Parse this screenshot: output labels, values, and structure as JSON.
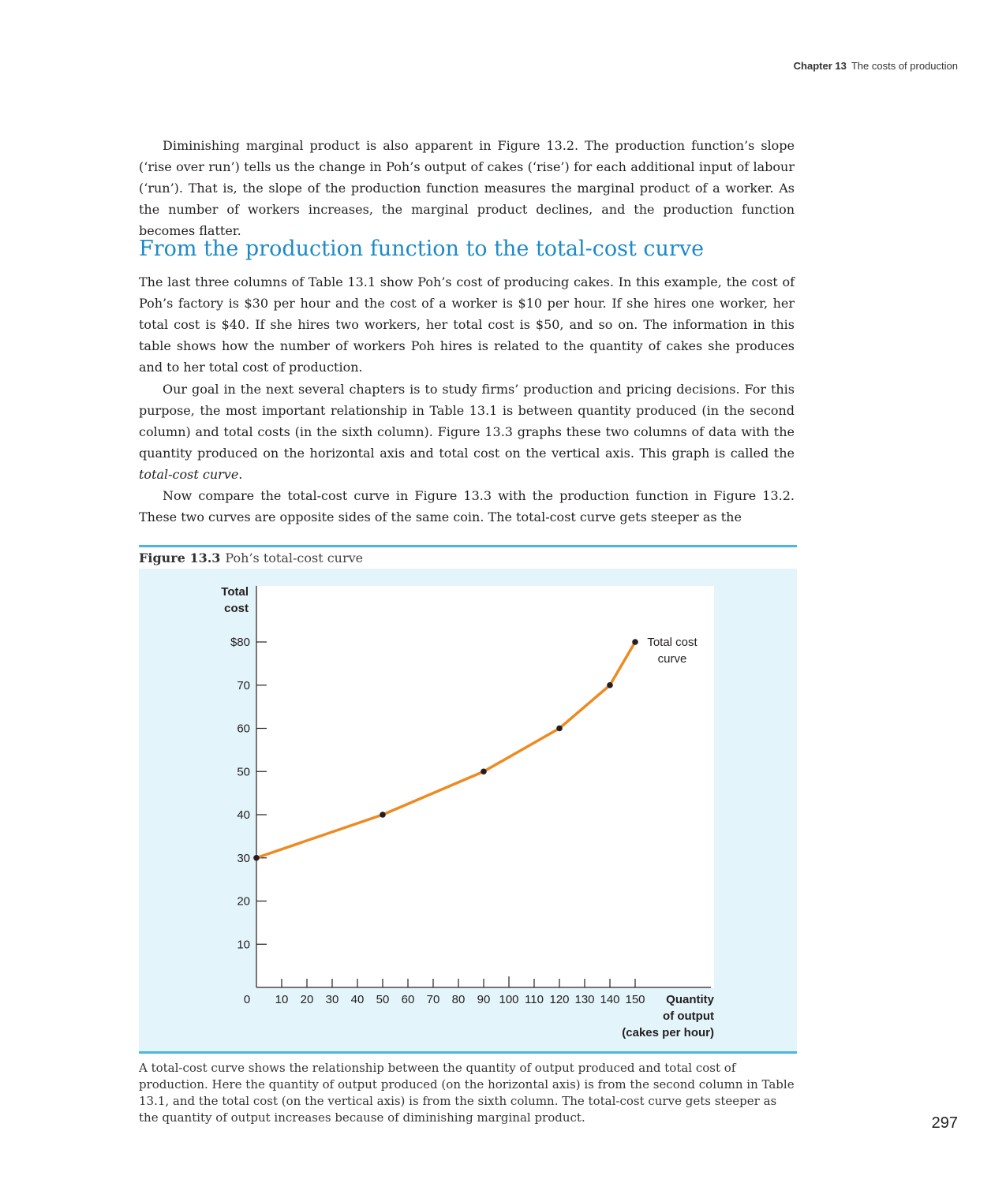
{
  "running_head": {
    "chapter": "Chapter 13",
    "title": "The costs of production"
  },
  "paragraphs": {
    "p1": "Diminishing marginal product is also apparent in Figure 13.2. The production function’s slope (‘rise over run’) tells us the change in Poh’s output of cakes (‘rise’) for each additional input of labour (‘run’). That is, the slope of the production function measures the marginal product of a worker. As the number of workers increases, the marginal product declines, and the production function becomes flatter.",
    "p2": "The last three columns of Table 13.1 show Poh’s cost of producing cakes. In this example, the cost of Poh’s factory is $30 per hour and the cost of a worker is $10 per hour. If she hires one worker, her total cost is $40. If she hires two workers, her total cost is $50, and so on. The information in this table shows how the number of workers Poh hires is related to the quantity of cakes she produces and to her total cost of production.",
    "p3_main": "Our goal in the next several chapters is to study firms’ production and pricing decisions. For this purpose, the most important relationship in Table 13.1 is between quantity produced (in the second column) and total costs (in the sixth column). Figure 13.3 graphs these two columns of data with the quantity produced on the horizontal axis and total cost on the vertical axis. This graph is called the ",
    "p3_term": "total-cost curve",
    "p3_end": ".",
    "p4": "Now compare the total-cost curve in Figure 13.3 with the production function in Figure 13.2. These two curves are opposite sides of the same coin. The total-cost curve gets steeper as the"
  },
  "section_heading": "From the production function to the total-cost curve",
  "figure": {
    "number": "Figure 13.3",
    "title": "Poh’s total-cost curve",
    "note": "A total-cost curve shows the relationship between the quantity of output produced and total cost of production. Here the quantity of output produced (on the horizontal axis) is from the second column in Table 13.1, and the total cost (on the vertical axis) is from the sixth column. The total-cost curve gets steeper as the quantity of output increases because of diminishing marginal product."
  },
  "chart_data": {
    "type": "line",
    "ylabel": [
      "Total",
      "cost"
    ],
    "xlabel": [
      "Quantity",
      "of output",
      "(cakes per hour)"
    ],
    "origin_label": "0",
    "x_ticks": [
      10,
      20,
      30,
      40,
      50,
      60,
      70,
      80,
      90,
      100,
      110,
      120,
      130,
      140,
      150
    ],
    "y_ticks": [
      10,
      20,
      30,
      40,
      50,
      60,
      70,
      80
    ],
    "y_tick_labels": [
      "10",
      "20",
      "30",
      "40",
      "50",
      "60",
      "70",
      "$80"
    ],
    "xlim": [
      0,
      180
    ],
    "ylim": [
      0,
      93
    ],
    "series": [
      {
        "name": "Total cost curve",
        "color": "#ee8a22",
        "points": [
          {
            "x": 0,
            "y": 30
          },
          {
            "x": 50,
            "y": 40
          },
          {
            "x": 90,
            "y": 50
          },
          {
            "x": 120,
            "y": 60
          },
          {
            "x": 140,
            "y": 70
          },
          {
            "x": 150,
            "y": 80
          }
        ]
      }
    ],
    "curve_label": [
      "Total cost",
      "curve"
    ],
    "grid": false,
    "legend": "none"
  },
  "page_number": "297"
}
